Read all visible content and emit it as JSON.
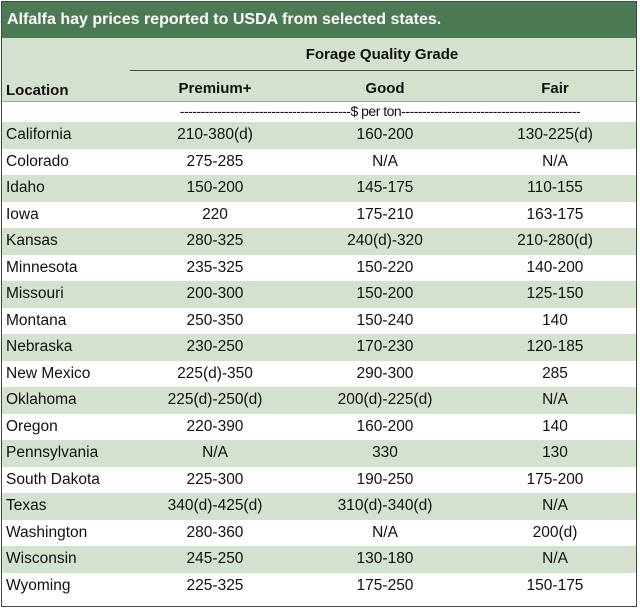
{
  "title": "Alfalfa hay prices reported to USDA from selected states.",
  "header": {
    "group_label": "Forage Quality Grade",
    "location_label": "Location",
    "columns": [
      "Premium+",
      "Good",
      "Fair"
    ],
    "units": "-----------------------------------------$ per ton-------------------------------------------"
  },
  "rows": [
    {
      "location": "California",
      "premium": "210-380(d)",
      "good": "160-200",
      "fair": "130-225(d)"
    },
    {
      "location": "Colorado",
      "premium": "275-285",
      "good": "N/A",
      "fair": "N/A"
    },
    {
      "location": "Idaho",
      "premium": "150-200",
      "good": "145-175",
      "fair": "110-155"
    },
    {
      "location": "Iowa",
      "premium": "220",
      "good": "175-210",
      "fair": "163-175"
    },
    {
      "location": "Kansas",
      "premium": "280-325",
      "good": "240(d)-320",
      "fair": "210-280(d)"
    },
    {
      "location": "Minnesota",
      "premium": "235-325",
      "good": "150-220",
      "fair": "140-200"
    },
    {
      "location": "Missouri",
      "premium": "200-300",
      "good": "150-200",
      "fair": "125-150"
    },
    {
      "location": "Montana",
      "premium": "250-350",
      "good": "150-240",
      "fair": "140"
    },
    {
      "location": "Nebraska",
      "premium": "230-250",
      "good": "170-230",
      "fair": "120-185"
    },
    {
      "location": "New Mexico",
      "premium": "225(d)-350",
      "good": "290-300",
      "fair": "285"
    },
    {
      "location": "Oklahoma",
      "premium": "225(d)-250(d)",
      "good": "200(d)-225(d)",
      "fair": "N/A"
    },
    {
      "location": "Oregon",
      "premium": "220-390",
      "good": "160-200",
      "fair": "140"
    },
    {
      "location": "Pennsylvania",
      "premium": "N/A",
      "good": "330",
      "fair": "130"
    },
    {
      "location": "South Dakota",
      "premium": "225-300",
      "good": "190-250",
      "fair": "175-200"
    },
    {
      "location": "Texas",
      "premium": "340(d)-425(d)",
      "good": "310(d)-340(d)",
      "fair": "N/A"
    },
    {
      "location": "Washington",
      "premium": "280-360",
      "good": "N/A",
      "fair": "200(d)"
    },
    {
      "location": "Wisconsin",
      "premium": "245-250",
      "good": "130-180",
      "fair": "N/A"
    },
    {
      "location": "Wyoming",
      "premium": "225-325",
      "good": "175-250",
      "fair": "150-175"
    }
  ],
  "colors": {
    "title_bg": "#4b7a55",
    "shade": "#d3e1ce"
  }
}
